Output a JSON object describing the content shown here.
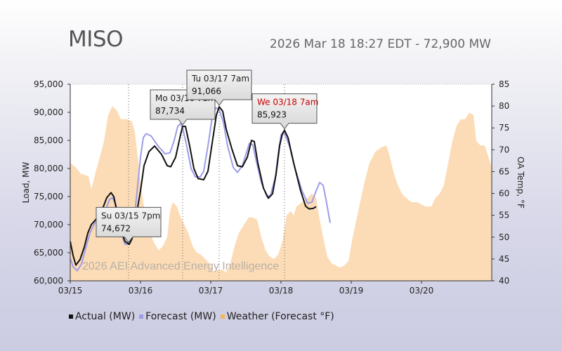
{
  "header": {
    "title": "MISO",
    "subtitle": "2026 Mar 18 18:27 EDT - 72,900 MW"
  },
  "watermark": "2026 AEI Advanced Energy Intelligence",
  "colors": {
    "actual": "#111111",
    "forecast": "#9d9de8",
    "weather": "#fcdcb6",
    "tooltip_red": "#cc0000"
  },
  "chart_data": {
    "type": "line",
    "categories": [
      "03/15",
      "03/16",
      "03/17",
      "03/18",
      "03/19",
      "03/20"
    ],
    "ylabel": "Load, MW",
    "y2label": "OA Temp, °F",
    "ylim": [
      60000,
      95000
    ],
    "y2lim": [
      40,
      85
    ],
    "yticks": [
      "60,000",
      "65,000",
      "70,000",
      "75,000",
      "80,000",
      "85,000",
      "90,000",
      "95,000"
    ],
    "y2ticks": [
      "40",
      "45",
      "50",
      "55",
      "60",
      "65",
      "70",
      "75",
      "80",
      "85"
    ],
    "grid": false,
    "legend": [
      "Actual (MW)",
      "Forecast (MW)",
      "Weather (Forecast °F)"
    ],
    "series": [
      {
        "name": "Actual (MW)",
        "points": [
          [
            0,
            67000
          ],
          [
            0.04,
            64500
          ],
          [
            0.08,
            62800
          ],
          [
            0.14,
            63800
          ],
          [
            0.2,
            66000
          ],
          [
            0.25,
            68500
          ],
          [
            0.3,
            70000
          ],
          [
            0.37,
            71000
          ],
          [
            0.45,
            72500
          ],
          [
            0.52,
            74800
          ],
          [
            0.58,
            75700
          ],
          [
            0.62,
            75000
          ],
          [
            0.67,
            72000
          ],
          [
            0.72,
            69000
          ],
          [
            0.78,
            67000
          ],
          [
            0.84,
            66500
          ],
          [
            0.88,
            67500
          ],
          [
            0.93,
            71000
          ],
          [
            1.0,
            76000
          ],
          [
            1.05,
            80500
          ],
          [
            1.12,
            83000
          ],
          [
            1.2,
            84000
          ],
          [
            1.3,
            82500
          ],
          [
            1.38,
            80500
          ],
          [
            1.43,
            80300
          ],
          [
            1.5,
            82000
          ],
          [
            1.57,
            86000
          ],
          [
            1.6,
            87500
          ],
          [
            1.64,
            87500
          ],
          [
            1.7,
            84000
          ],
          [
            1.76,
            80000
          ],
          [
            1.82,
            78200
          ],
          [
            1.9,
            78000
          ],
          [
            1.96,
            79500
          ],
          [
            2.02,
            84500
          ],
          [
            2.08,
            89500
          ],
          [
            2.12,
            91000
          ],
          [
            2.17,
            90200
          ],
          [
            2.22,
            87000
          ],
          [
            2.3,
            83500
          ],
          [
            2.38,
            80500
          ],
          [
            2.45,
            80300
          ],
          [
            2.52,
            82000
          ],
          [
            2.58,
            85000
          ],
          [
            2.62,
            84800
          ],
          [
            2.67,
            81000
          ],
          [
            2.75,
            76500
          ],
          [
            2.82,
            74700
          ],
          [
            2.88,
            75500
          ],
          [
            2.93,
            79000
          ],
          [
            2.98,
            84000
          ],
          [
            3.02,
            86200
          ],
          [
            3.05,
            86800
          ],
          [
            3.1,
            85500
          ],
          [
            3.18,
            81000
          ],
          [
            3.28,
            76000
          ],
          [
            3.35,
            73300
          ],
          [
            3.4,
            72800
          ],
          [
            3.46,
            72900
          ],
          [
            3.5,
            73200
          ]
        ]
      },
      {
        "name": "Forecast (MW)",
        "points": [
          [
            0,
            64000
          ],
          [
            0.04,
            62500
          ],
          [
            0.1,
            61800
          ],
          [
            0.16,
            63000
          ],
          [
            0.22,
            65800
          ],
          [
            0.28,
            68500
          ],
          [
            0.35,
            70300
          ],
          [
            0.42,
            71000
          ],
          [
            0.5,
            72500
          ],
          [
            0.56,
            74500
          ],
          [
            0.6,
            74800
          ],
          [
            0.65,
            73500
          ],
          [
            0.7,
            70500
          ],
          [
            0.75,
            67500
          ],
          [
            0.78,
            66500
          ],
          [
            0.82,
            66500
          ],
          [
            0.86,
            67500
          ],
          [
            0.91,
            71000
          ],
          [
            0.96,
            77000
          ],
          [
            1.0,
            82000
          ],
          [
            1.04,
            85500
          ],
          [
            1.08,
            86200
          ],
          [
            1.15,
            85800
          ],
          [
            1.25,
            84000
          ],
          [
            1.35,
            82600
          ],
          [
            1.42,
            82800
          ],
          [
            1.48,
            85000
          ],
          [
            1.53,
            87500
          ],
          [
            1.57,
            88000
          ],
          [
            1.6,
            87200
          ],
          [
            1.65,
            84500
          ],
          [
            1.72,
            80000
          ],
          [
            1.78,
            78500
          ],
          [
            1.85,
            78500
          ],
          [
            1.9,
            79500
          ],
          [
            1.96,
            84000
          ],
          [
            2.02,
            89000
          ],
          [
            2.07,
            90800
          ],
          [
            2.12,
            90500
          ],
          [
            2.18,
            88200
          ],
          [
            2.24,
            84000
          ],
          [
            2.32,
            80200
          ],
          [
            2.38,
            79300
          ],
          [
            2.45,
            80500
          ],
          [
            2.5,
            82500
          ],
          [
            2.55,
            84500
          ],
          [
            2.6,
            84200
          ],
          [
            2.65,
            81200
          ],
          [
            2.72,
            77500
          ],
          [
            2.8,
            75000
          ],
          [
            2.85,
            75200
          ],
          [
            2.92,
            78500
          ],
          [
            2.97,
            83500
          ],
          [
            3.0,
            86000
          ],
          [
            3.05,
            86300
          ],
          [
            3.12,
            84000
          ],
          [
            3.2,
            80000
          ],
          [
            3.3,
            76000
          ],
          [
            3.38,
            73800
          ],
          [
            3.44,
            74000
          ],
          [
            3.5,
            76000
          ],
          [
            3.55,
            77500
          ],
          [
            3.6,
            77000
          ],
          [
            3.64,
            74500
          ],
          [
            3.7,
            70300
          ]
        ]
      },
      {
        "name": "Weather (Forecast °F)",
        "points": [
          [
            0,
            67
          ],
          [
            0.08,
            66
          ],
          [
            0.15,
            64.5
          ],
          [
            0.26,
            64
          ],
          [
            0.3,
            61
          ],
          [
            0.38,
            66
          ],
          [
            0.45,
            70
          ],
          [
            0.48,
            72
          ],
          [
            0.54,
            78
          ],
          [
            0.6,
            80
          ],
          [
            0.66,
            79
          ],
          [
            0.72,
            77
          ],
          [
            0.8,
            77
          ],
          [
            0.88,
            76.5
          ],
          [
            0.92,
            74
          ],
          [
            0.97,
            67
          ],
          [
            1.02,
            60
          ],
          [
            1.08,
            54
          ],
          [
            1.13,
            51
          ],
          [
            1.2,
            48.5
          ],
          [
            1.26,
            47
          ],
          [
            1.32,
            48
          ],
          [
            1.38,
            50
          ],
          [
            1.42,
            56
          ],
          [
            1.46,
            58
          ],
          [
            1.52,
            57
          ],
          [
            1.56,
            55
          ],
          [
            1.62,
            53
          ],
          [
            1.68,
            51
          ],
          [
            1.74,
            48
          ],
          [
            1.8,
            46.5
          ],
          [
            1.86,
            46
          ],
          [
            1.92,
            45
          ],
          [
            1.98,
            44
          ],
          [
            2.04,
            42
          ],
          [
            2.1,
            42.5
          ],
          [
            2.16,
            42.5
          ],
          [
            2.22,
            42
          ],
          [
            2.28,
            44
          ],
          [
            2.34,
            48
          ],
          [
            2.4,
            51
          ],
          [
            2.48,
            53
          ],
          [
            2.54,
            54.5
          ],
          [
            2.6,
            54.5
          ],
          [
            2.66,
            54
          ],
          [
            2.72,
            50
          ],
          [
            2.78,
            47
          ],
          [
            2.84,
            45.5
          ],
          [
            2.9,
            45
          ],
          [
            2.96,
            46
          ],
          [
            3.02,
            49
          ],
          [
            3.08,
            55
          ],
          [
            3.14,
            56
          ],
          [
            3.18,
            55
          ],
          [
            3.22,
            57
          ],
          [
            3.3,
            58
          ],
          [
            3.38,
            59
          ],
          [
            3.44,
            60
          ],
          [
            3.5,
            59
          ],
          [
            3.54,
            55
          ],
          [
            3.6,
            50
          ],
          [
            3.66,
            45.5
          ],
          [
            3.72,
            44
          ],
          [
            3.78,
            43.5
          ],
          [
            3.84,
            43
          ],
          [
            3.9,
            43.5
          ],
          [
            3.96,
            44.5
          ],
          [
            4.02,
            50
          ],
          [
            4.1,
            56
          ],
          [
            4.18,
            62
          ],
          [
            4.26,
            67
          ],
          [
            4.34,
            69.5
          ],
          [
            4.42,
            70.5
          ],
          [
            4.5,
            71
          ],
          [
            4.54,
            69
          ],
          [
            4.6,
            65
          ],
          [
            4.66,
            62
          ],
          [
            4.72,
            60
          ],
          [
            4.78,
            59
          ],
          [
            4.86,
            58
          ],
          [
            4.94,
            58
          ],
          [
            5.0,
            57.5
          ],
          [
            5.06,
            57
          ],
          [
            5.14,
            57
          ],
          [
            5.2,
            59
          ],
          [
            5.26,
            60
          ],
          [
            5.32,
            62
          ],
          [
            5.38,
            67
          ],
          [
            5.44,
            72
          ],
          [
            5.5,
            75.5
          ],
          [
            5.56,
            77
          ],
          [
            5.62,
            77
          ],
          [
            5.68,
            78.5
          ],
          [
            5.74,
            78
          ],
          [
            5.78,
            72
          ],
          [
            5.84,
            71
          ],
          [
            5.9,
            71
          ],
          [
            5.94,
            69
          ],
          [
            6.0,
            66
          ]
        ]
      }
    ],
    "annotations": [
      {
        "x": 0.83,
        "label": "Su 03/15 7pm",
        "value": "74,672",
        "highlight": false
      },
      {
        "x": 1.6,
        "label": "Mo 03/16 7am",
        "value": "87,734",
        "highlight": false
      },
      {
        "x": 2.12,
        "label": "Tu 03/17 7am",
        "value": "91,066",
        "highlight": false
      },
      {
        "x": 3.05,
        "label": "We 03/18 7am",
        "value": "85,923",
        "highlight": true
      }
    ]
  }
}
